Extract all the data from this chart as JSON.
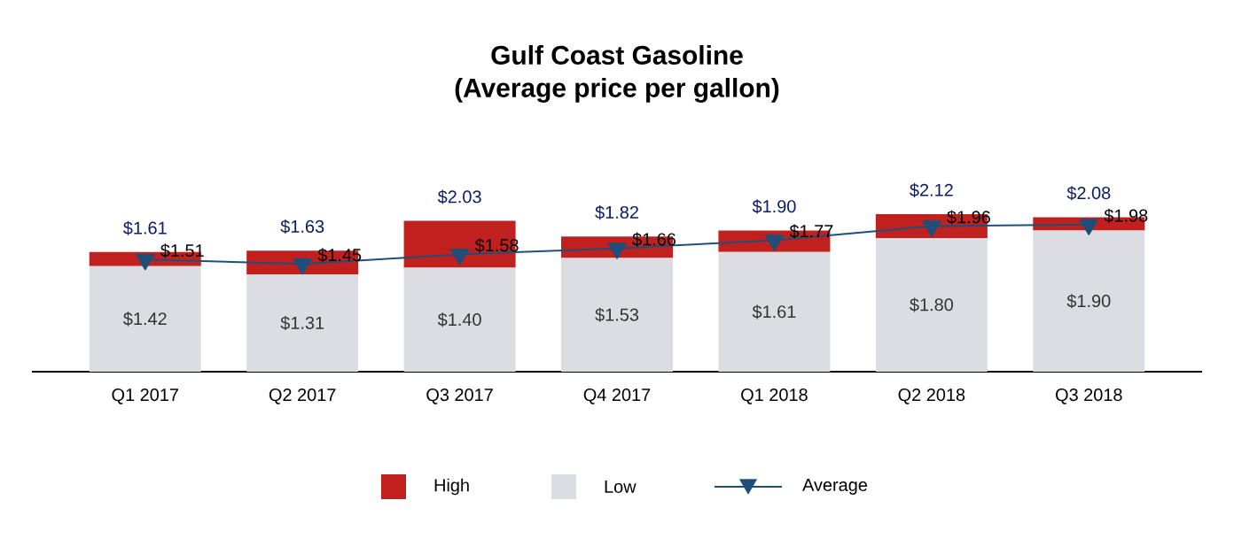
{
  "chart_data": {
    "type": "bar",
    "title": "Gulf Coast Gasoline",
    "subtitle": "(Average price per gallon)",
    "categories": [
      "Q1 2017",
      "Q2 2017",
      "Q3 2017",
      "Q4 2017",
      "Q1 2018",
      "Q2 2018",
      "Q3 2018"
    ],
    "stacked": true,
    "tick_labels": "x",
    "legend": "bottom",
    "series": [
      {
        "name": "Low",
        "color": "#dcdde2",
        "values": [
          1.42,
          1.31,
          1.4,
          1.53,
          1.61,
          1.8,
          1.9
        ],
        "value_labels": [
          "$1.42",
          "$1.31",
          "$1.40",
          "$1.53",
          "$1.61",
          "$1.80",
          "$1.90"
        ]
      },
      {
        "name": "High",
        "color": "#c0211f",
        "values": [
          0.19,
          0.32,
          0.63,
          0.29,
          0.29,
          0.32,
          0.18
        ]
      },
      {
        "name": "Average",
        "type": "line",
        "color": "#1f4e79",
        "marker": "triangle",
        "values": [
          1.51,
          1.45,
          1.58,
          1.66,
          1.77,
          1.96,
          1.98
        ],
        "value_labels": [
          "$1.51",
          "$1.45",
          "$1.58",
          "$1.66",
          "$1.77",
          "$1.96",
          "$1.98"
        ]
      }
    ],
    "totals": [
      "$1.61",
      "$1.63",
      "$2.03",
      "$1.82",
      "$1.90",
      "$2.12",
      "$2.08"
    ]
  }
}
